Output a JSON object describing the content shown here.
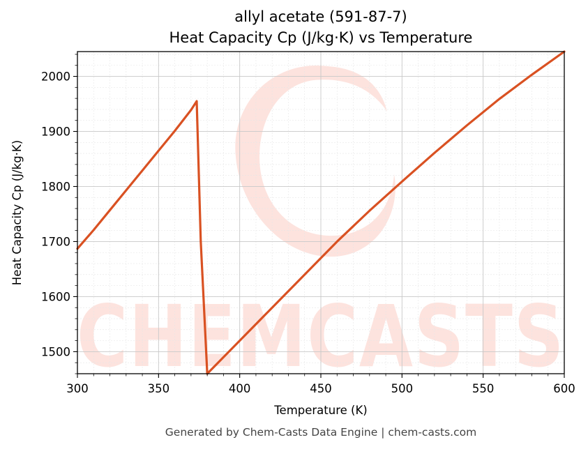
{
  "chart_data": {
    "type": "line",
    "title": "allyl acetate (591-87-7)",
    "subtitle": "Heat Capacity Cp (J/kg·K) vs Temperature",
    "xlabel": "Temperature (K)",
    "ylabel": "Heat Capacity Cp (J/kg·K)",
    "xlim": [
      300,
      600
    ],
    "ylim": [
      1460,
      2045
    ],
    "xticks": [
      300,
      350,
      400,
      450,
      500,
      550,
      600
    ],
    "yticks": [
      1500,
      1600,
      1700,
      1800,
      1900,
      2000
    ],
    "grid": true,
    "legend": "none",
    "series": [
      {
        "color": "#d95122",
        "x": [
          300,
          310,
          320,
          330,
          340,
          350,
          360,
          370,
          373.5,
          376,
          380,
          400,
          420,
          440,
          460,
          480,
          500,
          520,
          540,
          560,
          580,
          600
        ],
        "y": [
          1687,
          1721,
          1757,
          1793,
          1829,
          1865,
          1901,
          1939,
          1955,
          1700,
          1460,
          1520,
          1580,
          1640,
          1700,
          1756,
          1809,
          1861,
          1911,
          1959,
          2003,
          2045
        ]
      }
    ]
  },
  "watermark": {
    "text": "CHEMCASTS",
    "color": "#fde3de"
  },
  "footer": "Generated by Chem-Casts Data Engine | chem-casts.com"
}
